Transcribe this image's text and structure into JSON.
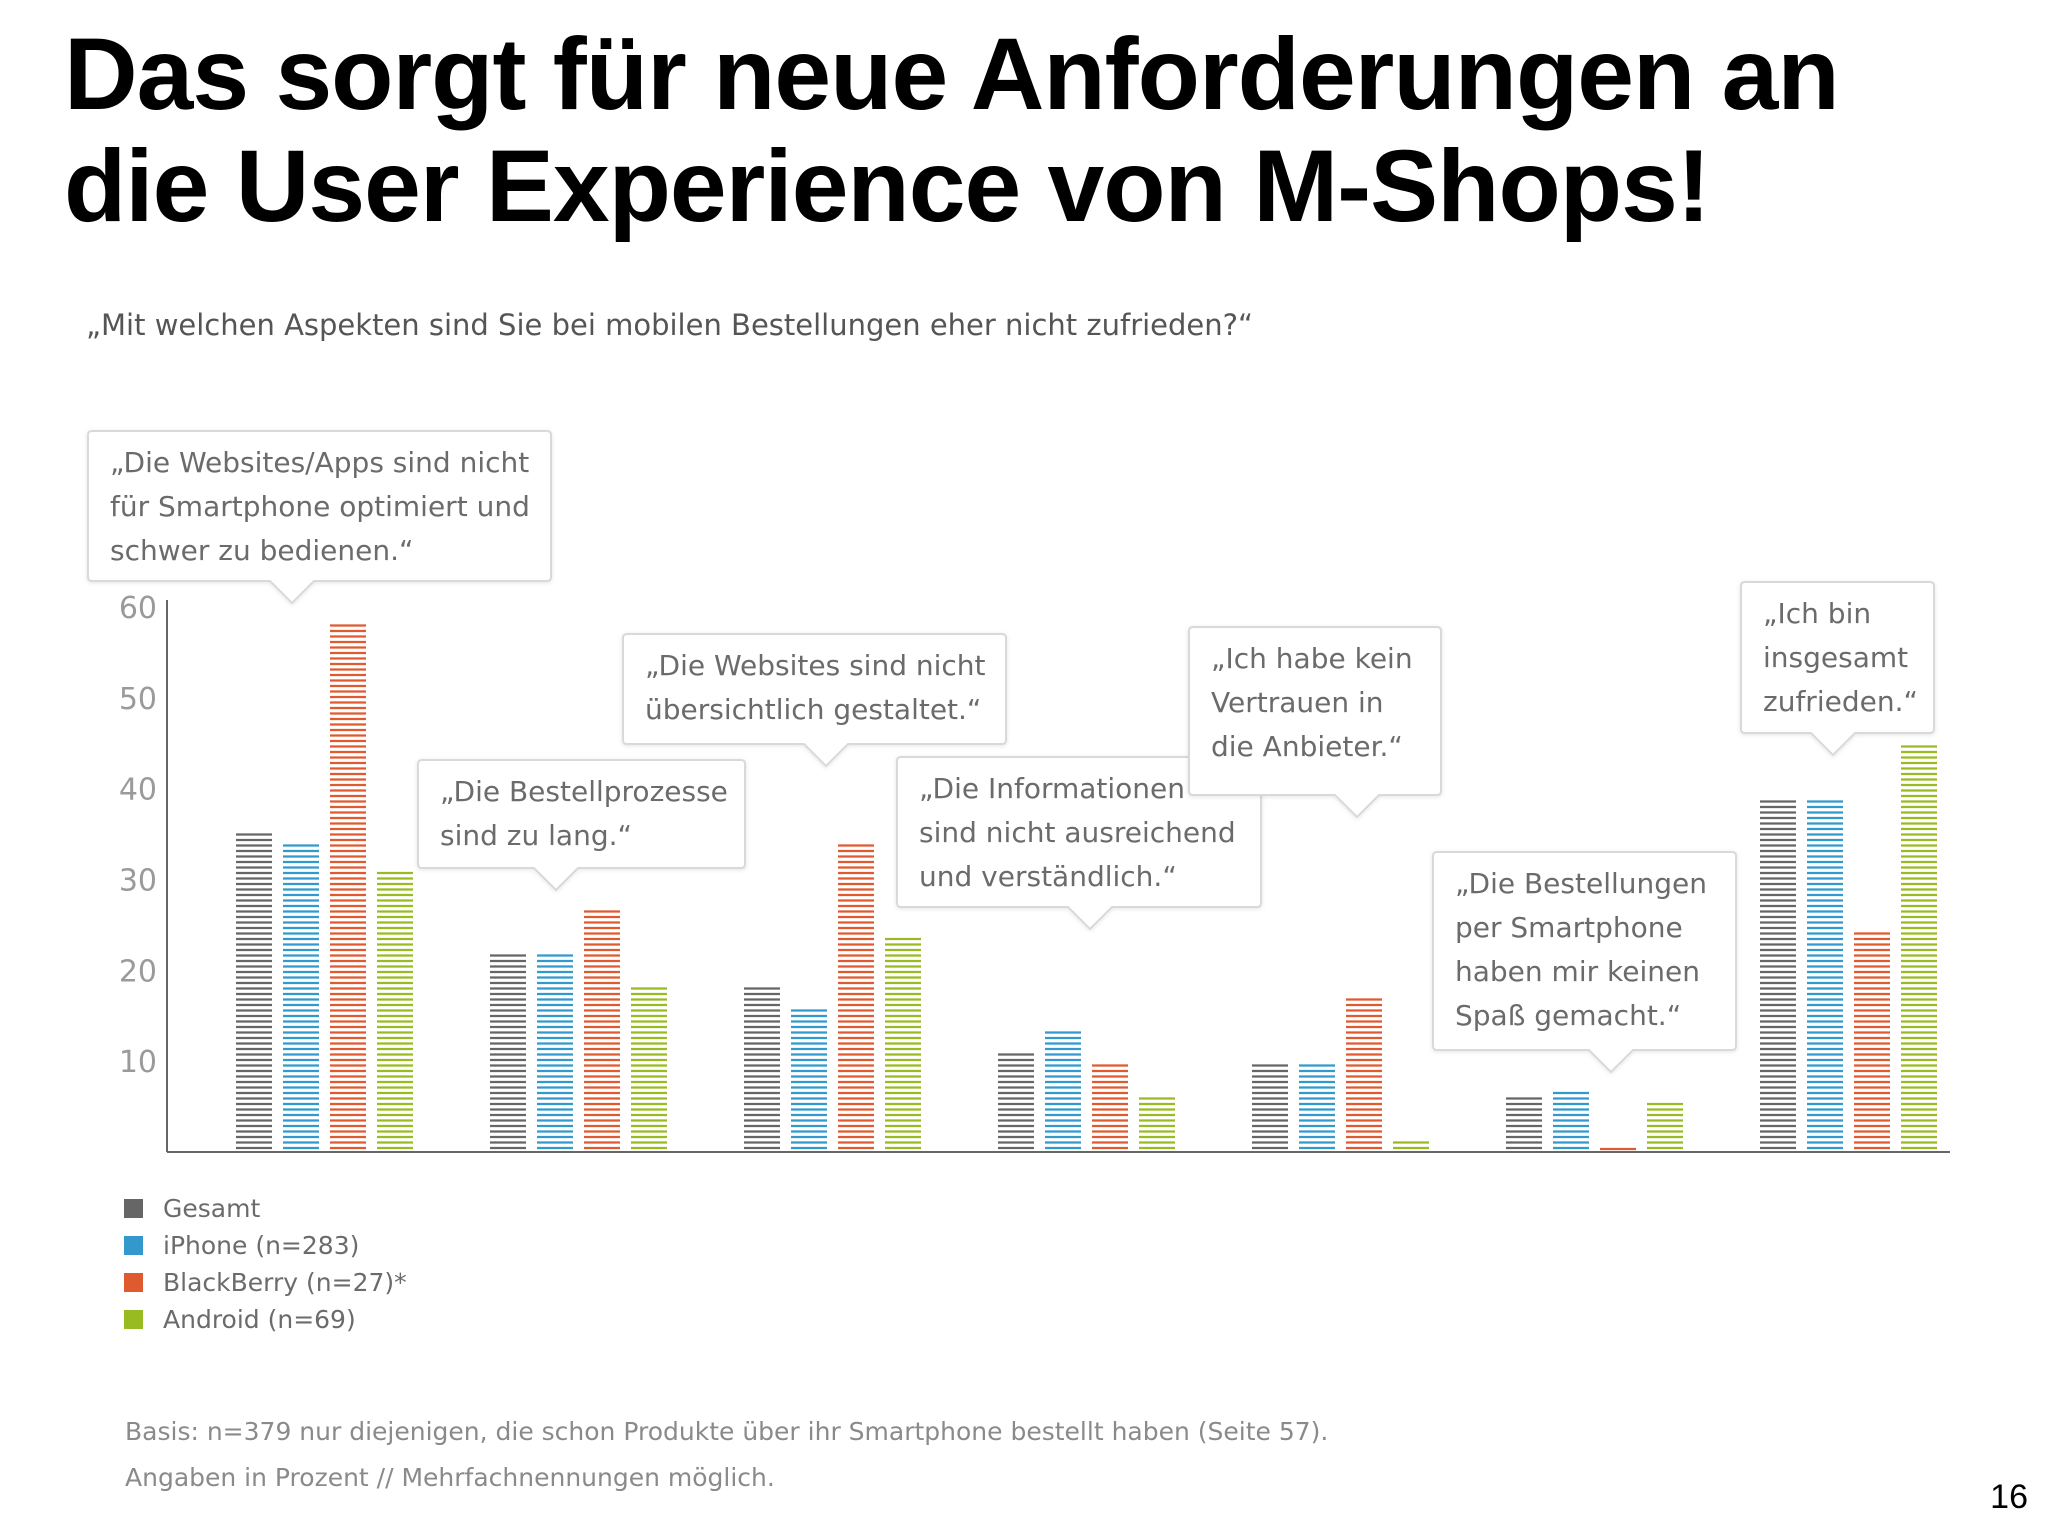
{
  "title": {
    "line1": "Das sorgt für neue Anforderungen an",
    "line2": "die User Experience von M-Shops!"
  },
  "question": "„Mit welchen Aspekten sind Sie bei mobilen Bestellungen eher nicht zufrieden?“",
  "chart_data": {
    "type": "bar",
    "categories": [
      "„Die Websites/Apps sind nicht für Smartphone optimiert und schwer zu bedienen.“",
      "„Die Bestellprozesse sind zu lang.“",
      "„Die Websites sind nicht übersichtlich gestaltet.“",
      "„Die Informationen sind nicht ausreichend und verständlich.“",
      "„Ich habe kein Vertrauen in die Anbieter.“",
      "„Die Bestellungen per Smartphone haben mir keinen Spaß gemacht.“",
      "„Ich bin insgesamt zufrieden.“"
    ],
    "callout_lines": [
      [
        "„Die Websites/Apps sind nicht",
        "für Smartphone optimiert und",
        "schwer zu bedienen.“"
      ],
      [
        "„Die Bestellprozesse",
        "sind zu lang.“"
      ],
      [
        "„Die Websites sind nicht",
        "übersichtlich gestaltet.“"
      ],
      [
        "„Die Informationen",
        "sind nicht ausreichend",
        "und verständlich.“"
      ],
      [
        "„Ich habe kein",
        "Vertrauen in",
        "die Anbieter.“"
      ],
      [
        "„Die Bestellungen",
        "per Smartphone",
        "haben mir keinen",
        "Spaß gemacht.“"
      ],
      [
        "„Ich bin",
        "insgesamt",
        "zufrieden.“"
      ]
    ],
    "series": [
      {
        "name": "Gesamt",
        "color": "#666666",
        "values": [
          35,
          22,
          18,
          11,
          9.5,
          6,
          39
        ]
      },
      {
        "name": "iPhone (n=283)",
        "color": "#3399cc",
        "values": [
          34,
          22,
          16,
          13.5,
          9.5,
          7,
          39
        ]
      },
      {
        "name": "BlackBerry (n=27)*",
        "color": "#e05a30",
        "values": [
          58,
          27,
          34,
          9.5,
          17,
          0.3,
          24
        ]
      },
      {
        "name": "Android (n=69)",
        "color": "#99bb22",
        "values": [
          31,
          18,
          23.5,
          6,
          1,
          5.5,
          45
        ]
      }
    ],
    "yticks": [
      10,
      20,
      30,
      40,
      50,
      60
    ],
    "ylim": [
      0,
      60
    ],
    "xlabel": "",
    "ylabel": "",
    "grid": false,
    "legend_position": "bottom-left"
  },
  "legend": {
    "items": [
      "Gesamt",
      "iPhone (n=283)",
      "BlackBerry (n=27)*",
      "Android (n=69)"
    ],
    "colors": [
      "#666666",
      "#3399cc",
      "#e05a30",
      "#99bb22"
    ]
  },
  "footnote": {
    "line1": "Basis: n=379 nur diejenigen, die schon Produkte über ihr Smartphone bestellt haben (Seite 57).",
    "line2": "Angaben in Prozent // Mehrfachnennungen möglich."
  },
  "page_number": "16"
}
